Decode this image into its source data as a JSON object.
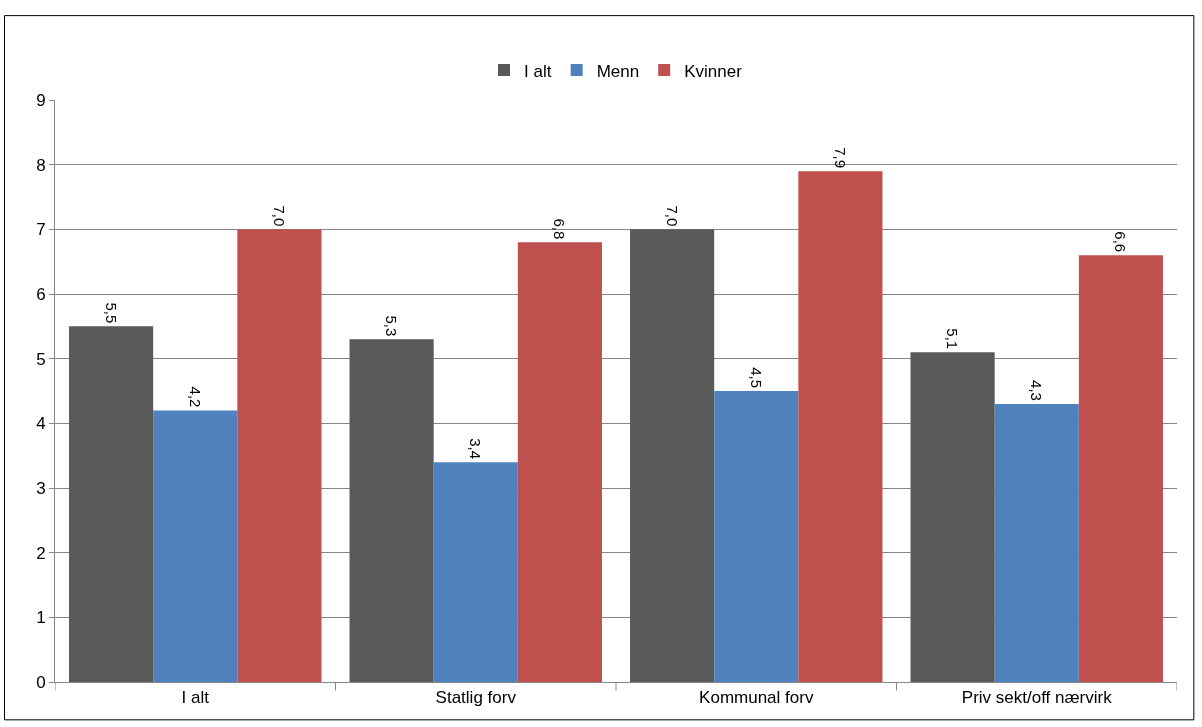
{
  "chart_data": {
    "type": "bar",
    "categories": [
      "I alt",
      "Statlig forv",
      "Kommunal forv",
      "Priv sekt/off nærvirk"
    ],
    "series": [
      {
        "name": "I alt",
        "color": "#595959",
        "values": [
          5.5,
          5.3,
          7.0,
          5.1
        ],
        "value_labels": [
          "5,5",
          "5,3",
          "7,0",
          "5,1"
        ]
      },
      {
        "name": "Menn",
        "color": "#4f81bd",
        "values": [
          4.2,
          3.4,
          4.5,
          4.3
        ],
        "value_labels": [
          "4,2",
          "3,4",
          "4,5",
          "4,3"
        ]
      },
      {
        "name": "Kvinner",
        "color": "#c0504d",
        "values": [
          7.0,
          6.8,
          7.9,
          6.6
        ],
        "value_labels": [
          "7,0",
          "6,8",
          "7,9",
          "6,6"
        ]
      }
    ],
    "ylim": [
      0,
      9
    ],
    "yticks": [
      0,
      1,
      2,
      3,
      4,
      5,
      6,
      7,
      8,
      9
    ],
    "grid": "y",
    "legend": "top"
  }
}
